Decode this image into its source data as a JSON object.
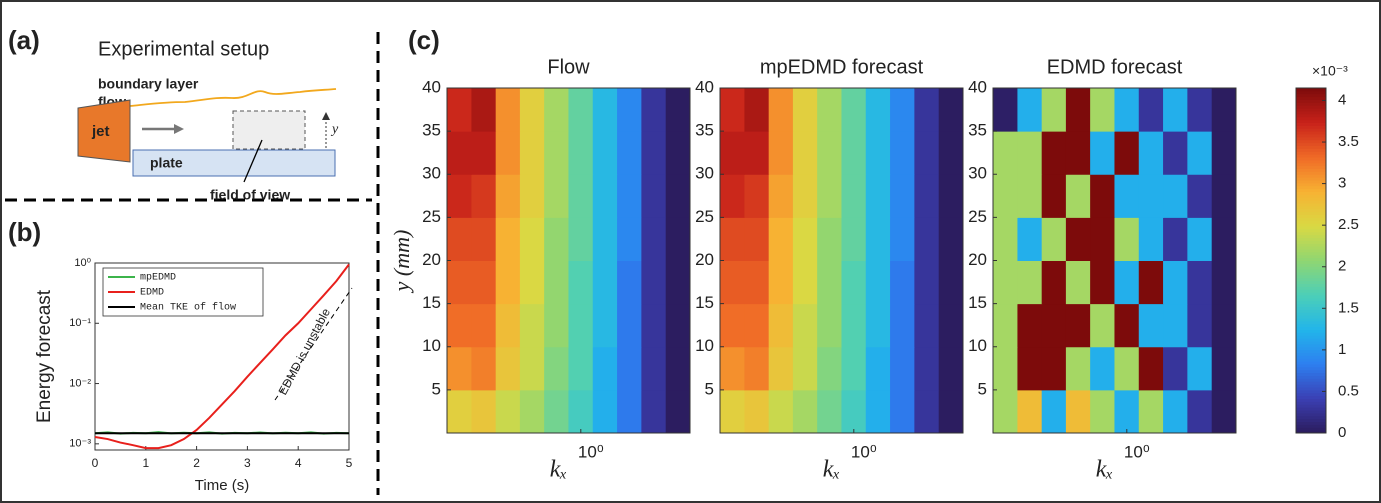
{
  "panel_labels": [
    "(a)",
    "(b)",
    "(c)"
  ],
  "diagram": {
    "title": "Experimental setup",
    "flow_label": [
      "boundary layer",
      "flow"
    ],
    "jet": "jet",
    "plate": "plate",
    "field": "field of view",
    "axis": "y"
  },
  "chart_data": [
    {
      "type": "line",
      "ylabel": "Energy forecast",
      "xlabel": "Time (s)",
      "x": [
        0,
        0.25,
        0.5,
        0.75,
        1,
        1.25,
        1.5,
        1.75,
        2,
        2.25,
        2.5,
        2.75,
        3,
        3.25,
        3.5,
        3.75,
        4,
        4.25,
        4.5,
        4.75,
        5
      ],
      "series": [
        {
          "name": "mpEDMD",
          "color": "#3cb44b",
          "values": [
            0.0015,
            0.00155,
            0.00148,
            0.00152,
            0.0015,
            0.00156,
            0.00149,
            0.00153,
            0.0015,
            0.00155,
            0.00148,
            0.00152,
            0.0015,
            0.00154,
            0.00149,
            0.00153,
            0.0015,
            0.00155,
            0.00148,
            0.00152,
            0.0015
          ]
        },
        {
          "name": "EDMD",
          "color": "#e8201c",
          "values": [
            0.0013,
            0.0012,
            0.00105,
            0.00095,
            0.00085,
            0.00085,
            0.00095,
            0.0012,
            0.0017,
            0.0027,
            0.0045,
            0.0075,
            0.013,
            0.022,
            0.037,
            0.063,
            0.1,
            0.17,
            0.29,
            0.5,
            0.95
          ]
        },
        {
          "name": "Mean TKE of flow",
          "color": "#000000",
          "values": [
            0.0015,
            0.0015,
            0.0015,
            0.0015,
            0.0015,
            0.0015,
            0.0015,
            0.0015,
            0.0015,
            0.0015,
            0.0015,
            0.0015,
            0.0015,
            0.0015,
            0.0015,
            0.0015,
            0.0015,
            0.0015,
            0.0015,
            0.0015,
            0.0015
          ]
        }
      ],
      "xlim": [
        0,
        5
      ],
      "xticks": [
        0,
        1,
        2,
        3,
        4,
        5
      ],
      "ylim": [
        0.00079,
        1
      ],
      "yscale": "log",
      "yticks": [
        {
          "value": 0.001,
          "label": "10⁻³"
        },
        {
          "value": 0.01,
          "label": "10⁻²"
        },
        {
          "value": 0.1,
          "label": "10⁻¹"
        },
        {
          "value": 1,
          "label": "10⁰"
        }
      ],
      "legend": "upper left",
      "annotation": "EDMD is unstable"
    },
    {
      "type": "heatmap",
      "title": "Flow",
      "xlabel": "kₓ",
      "ylabel": "y (mm)",
      "xscale": "log",
      "xlim": [
        0.25,
        3.1
      ],
      "xticks": [
        {
          "value": 1,
          "label": "10⁰"
        }
      ],
      "ylim": [
        0,
        40
      ],
      "yticks": [
        5,
        10,
        15,
        20,
        25,
        30,
        35,
        40
      ],
      "xbins": [
        0.25,
        0.322,
        0.414,
        0.532,
        0.684,
        0.88,
        1.132,
        1.456,
        1.873,
        2.41,
        3.1
      ],
      "ybins": [
        0,
        5,
        10,
        15,
        20,
        25,
        30,
        35,
        40
      ],
      "z": [
        [
          2.6,
          2.7,
          2.4,
          2.2,
          1.9,
          1.6,
          1.2,
          0.8,
          0.3,
          0.02
        ],
        [
          3.1,
          3.2,
          2.7,
          2.4,
          2.0,
          1.7,
          1.2,
          0.8,
          0.3,
          0.02
        ],
        [
          3.3,
          3.3,
          2.8,
          2.4,
          2.1,
          1.7,
          1.3,
          0.8,
          0.3,
          0.02
        ],
        [
          3.4,
          3.4,
          2.9,
          2.5,
          2.1,
          1.7,
          1.3,
          0.8,
          0.3,
          0.02
        ],
        [
          3.5,
          3.5,
          2.9,
          2.5,
          2.1,
          1.8,
          1.3,
          0.9,
          0.3,
          0.02
        ],
        [
          3.7,
          3.6,
          3.0,
          2.6,
          2.2,
          1.8,
          1.3,
          0.9,
          0.3,
          0.02
        ],
        [
          3.8,
          3.8,
          3.1,
          2.6,
          2.2,
          1.8,
          1.3,
          0.9,
          0.3,
          0.02
        ],
        [
          3.7,
          3.9,
          3.1,
          2.6,
          2.2,
          1.8,
          1.3,
          0.9,
          0.3,
          0.02
        ]
      ]
    },
    {
      "type": "heatmap",
      "title": "mpEDMD forecast",
      "xlabel": "kₓ",
      "xscale": "log",
      "xlim": [
        0.25,
        3.1
      ],
      "xticks": [
        {
          "value": 1,
          "label": "10⁰"
        }
      ],
      "ylim": [
        0,
        40
      ],
      "yticks": [
        5,
        10,
        15,
        20,
        25,
        30,
        35,
        40
      ],
      "xbins": [
        0.25,
        0.322,
        0.414,
        0.532,
        0.684,
        0.88,
        1.132,
        1.456,
        1.873,
        2.41,
        3.1
      ],
      "ybins": [
        0,
        5,
        10,
        15,
        20,
        25,
        30,
        35,
        40
      ],
      "z": [
        [
          2.6,
          2.7,
          2.4,
          2.2,
          1.9,
          1.6,
          1.2,
          0.8,
          0.3,
          0.02
        ],
        [
          3.1,
          3.2,
          2.7,
          2.4,
          2.0,
          1.7,
          1.2,
          0.8,
          0.3,
          0.02
        ],
        [
          3.3,
          3.3,
          2.8,
          2.4,
          2.1,
          1.7,
          1.3,
          0.8,
          0.3,
          0.02
        ],
        [
          3.4,
          3.4,
          2.9,
          2.5,
          2.1,
          1.7,
          1.3,
          0.8,
          0.3,
          0.02
        ],
        [
          3.5,
          3.5,
          2.9,
          2.5,
          2.1,
          1.8,
          1.3,
          0.9,
          0.3,
          0.02
        ],
        [
          3.7,
          3.6,
          3.0,
          2.6,
          2.2,
          1.8,
          1.3,
          0.9,
          0.3,
          0.02
        ],
        [
          3.8,
          3.8,
          3.1,
          2.6,
          2.2,
          1.8,
          1.3,
          0.9,
          0.3,
          0.02
        ],
        [
          3.7,
          3.9,
          3.1,
          2.6,
          2.2,
          1.8,
          1.3,
          0.9,
          0.3,
          0.02
        ]
      ]
    },
    {
      "type": "heatmap",
      "title": "EDMD forecast",
      "xlabel": "kₓ",
      "xscale": "log",
      "xlim": [
        0.25,
        3.1
      ],
      "xticks": [
        {
          "value": 1,
          "label": "10⁰"
        }
      ],
      "ylim": [
        0,
        40
      ],
      "yticks": [
        5,
        10,
        15,
        20,
        25,
        30,
        35,
        40
      ],
      "xbins": [
        0.25,
        0.322,
        0.414,
        0.532,
        0.684,
        0.88,
        1.132,
        1.456,
        1.873,
        2.41,
        3.1
      ],
      "ybins": [
        0,
        5,
        10,
        15,
        20,
        25,
        30,
        35,
        40
      ],
      "z": [
        [
          2.2,
          2.8,
          1.2,
          2.8,
          2.2,
          1.2,
          2.2,
          1.2,
          0.3,
          0.02
        ],
        [
          2.2,
          4.2,
          4.2,
          2.2,
          1.2,
          2.2,
          4.2,
          0.3,
          1.2,
          0.02
        ],
        [
          2.2,
          4.2,
          4.2,
          4.2,
          2.2,
          4.2,
          1.2,
          1.2,
          0.3,
          0.02
        ],
        [
          2.2,
          2.2,
          4.2,
          2.2,
          4.2,
          1.2,
          4.2,
          1.2,
          0.3,
          0.02
        ],
        [
          2.2,
          1.2,
          2.2,
          4.2,
          4.2,
          2.2,
          1.2,
          0.3,
          1.2,
          0.02
        ],
        [
          2.2,
          2.2,
          4.2,
          2.2,
          4.2,
          1.2,
          1.2,
          1.2,
          0.3,
          0.02
        ],
        [
          2.2,
          2.2,
          4.2,
          4.2,
          1.2,
          4.2,
          1.2,
          0.3,
          1.2,
          0.02
        ],
        [
          0.05,
          1.2,
          2.2,
          4.2,
          2.2,
          1.2,
          0.3,
          1.2,
          0.3,
          0.02
        ]
      ]
    },
    {
      "type": "colorbar",
      "label": "×10⁻³",
      "clim": [
        0,
        4.15
      ],
      "ticks": [
        0,
        0.5,
        1,
        1.5,
        2,
        2.5,
        3,
        3.5,
        4
      ],
      "colormap": "turbo"
    }
  ]
}
